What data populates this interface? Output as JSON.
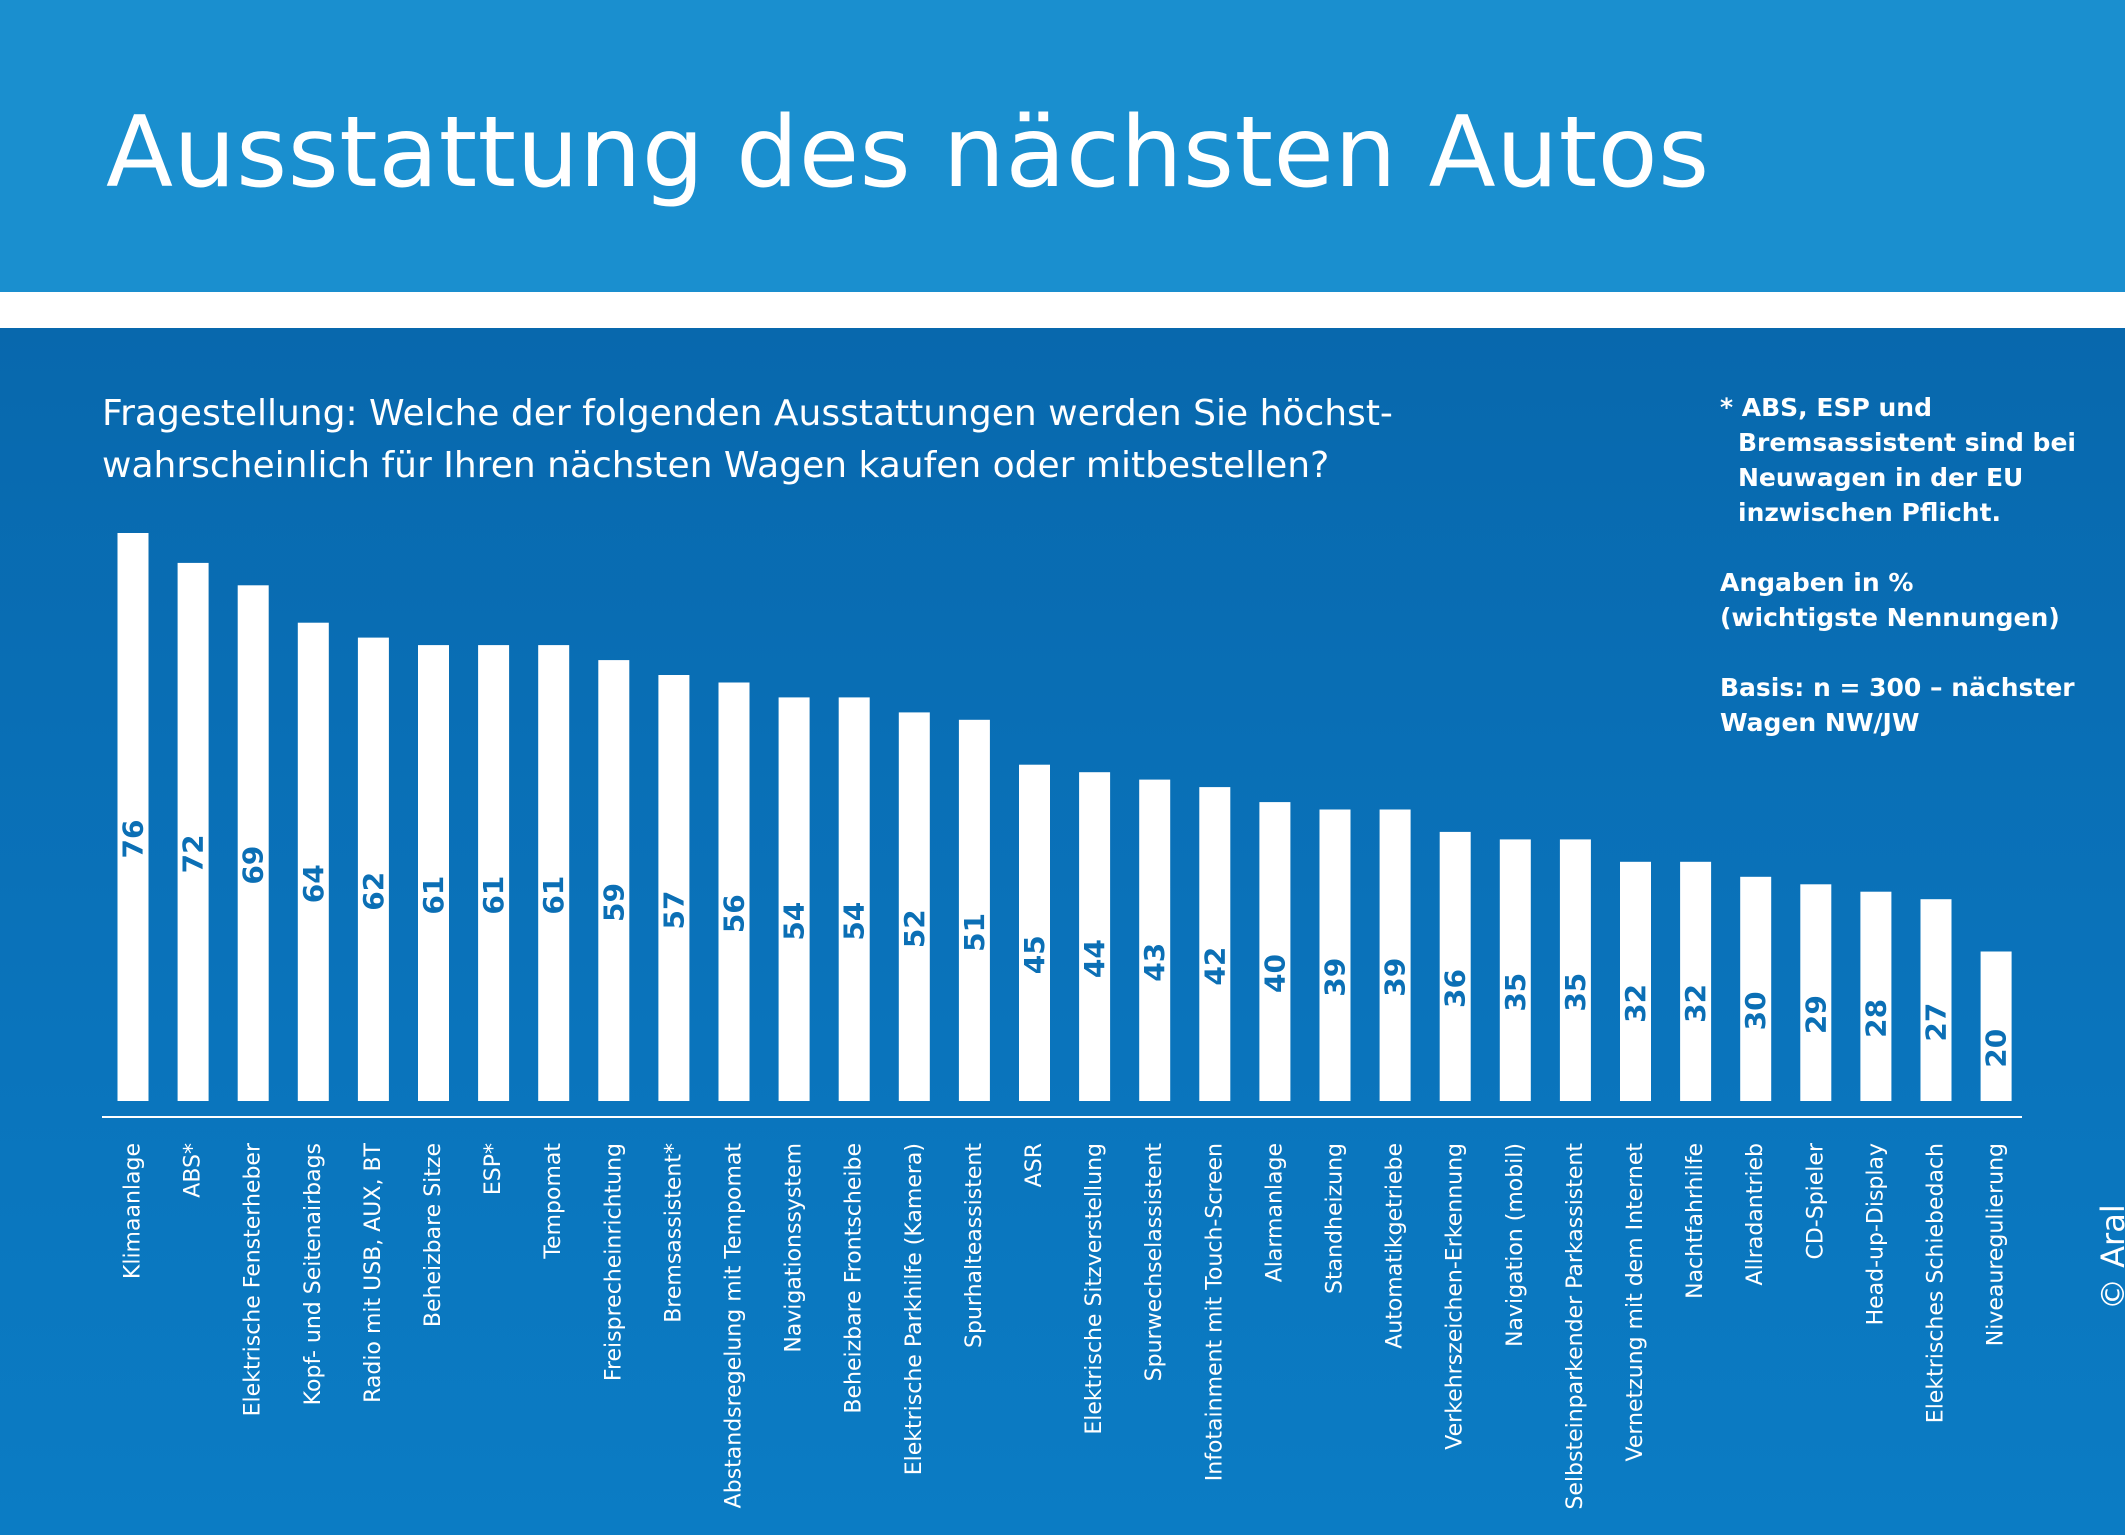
{
  "header": {
    "title": "Ausstattung des nächsten Autos"
  },
  "question": {
    "line1": "Fragestellung: Welche der folgenden Ausstattungen werden Sie höchst-",
    "line2": "wahrscheinlich für Ihren nächsten Wagen kaufen oder mitbestellen?"
  },
  "notes": {
    "footnote": [
      "* ABS, ESP und",
      "Bremsassistent sind bei",
      "Neuwagen in der EU",
      "inzwischen Pflicht."
    ],
    "units": [
      "Angaben in %",
      "(wichtigste Nennungen)"
    ],
    "basis": [
      "Basis: n = 300 – nächster",
      "Wagen NW/JW"
    ]
  },
  "copyright": "© Aral",
  "colors": {
    "header_bg": "#1a8fcf",
    "panel_bg": "#0a6db2",
    "bar": "#ffffff",
    "value_text": "#0b6fb5"
  },
  "chart_data": {
    "type": "bar",
    "orientation": "vertical",
    "categories": [
      "Klimaanlage",
      "ABS*",
      "Elektrische Fensterheber",
      "Kopf- und Seitenairbags",
      "Radio mit USB, AUX, BT",
      "Beheizbare Sitze",
      "ESP*",
      "Tempomat",
      "Freisprecheinrichtung",
      "Bremsassistent*",
      "Abstandsregelung mit Tempomat",
      "Navigationssystem",
      "Beheizbare Frontscheibe",
      "Elektrische Parkhilfe (Kamera)",
      "Spurhalteassistent",
      "ASR",
      "Elektrische Sitzverstellung",
      "Spurwechselassistent",
      "Infotainment mit Touch-Screen",
      "Alarmanlage",
      "Standheizung",
      "Automatikgetriebe",
      "Verkehrszeichen-Erkennung",
      "Navigation (mobil)",
      "Selbsteinparkender Parkassistent",
      "Vernetzung mit dem Internet",
      "Nachtfahrhilfe",
      "Allradantrieb",
      "CD-Spieler",
      "Head-up-Display",
      "Elektrisches Schiebedach",
      "Niveauregulierung"
    ],
    "values": [
      76,
      72,
      69,
      64,
      62,
      61,
      61,
      61,
      59,
      57,
      56,
      54,
      54,
      52,
      51,
      45,
      44,
      43,
      42,
      40,
      39,
      39,
      36,
      35,
      35,
      32,
      32,
      30,
      29,
      28,
      27,
      20
    ],
    "ylim": [
      0,
      76
    ],
    "unit": "%",
    "data_labels": "inside bar, rotated",
    "category_labels": "rotated vertical",
    "grid": false,
    "legend": "none"
  }
}
